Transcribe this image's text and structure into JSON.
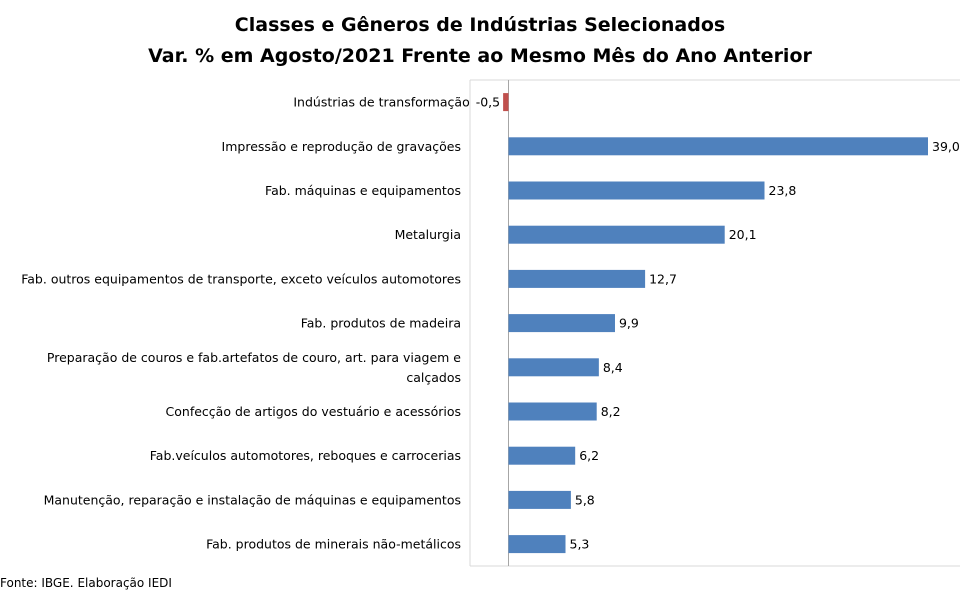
{
  "chart_data": {
    "type": "bar",
    "orientation": "horizontal",
    "title_lines": [
      "Classes e Gêneros de Indústrias Selecionados",
      "Var. % em Agosto/2021 Frente ao Mesmo Mês do Ano Anterior"
    ],
    "categories": [
      [
        "Indústrias de transformação"
      ],
      [
        "Impressão e reprodução de gravações"
      ],
      [
        "Fab. máquinas e equipamentos"
      ],
      [
        "Metalurgia"
      ],
      [
        "Fab. outros equipamentos de transporte, exceto veículos automotores"
      ],
      [
        "Fab. produtos de madeira"
      ],
      [
        "Preparação de couros e fab.artefatos de couro, art. para viagem e",
        "calçados"
      ],
      [
        "Confecção de artigos do vestuário e acessórios"
      ],
      [
        "Fab.veículos automotores, reboques e carrocerias"
      ],
      [
        "Manutenção, reparação e instalação de máquinas e equipamentos"
      ],
      [
        "Fab. produtos de minerais não-metálicos"
      ]
    ],
    "values": [
      -0.5,
      39.0,
      23.8,
      20.1,
      12.7,
      9.9,
      8.4,
      8.2,
      6.2,
      5.8,
      5.3
    ],
    "value_labels": [
      "-0,5",
      "39,0",
      "23,8",
      "20,1",
      "12,7",
      "9,9",
      "8,4",
      "8,2",
      "6,2",
      "5,8",
      "5,3"
    ],
    "colors": {
      "positive": "#4f81bd",
      "negative": "#c0504d",
      "grid": "#d9d9d9",
      "axis": "#a6a6a6"
    },
    "legend": "none"
  },
  "source": "Fonte: IBGE. Elaboração IEDI"
}
